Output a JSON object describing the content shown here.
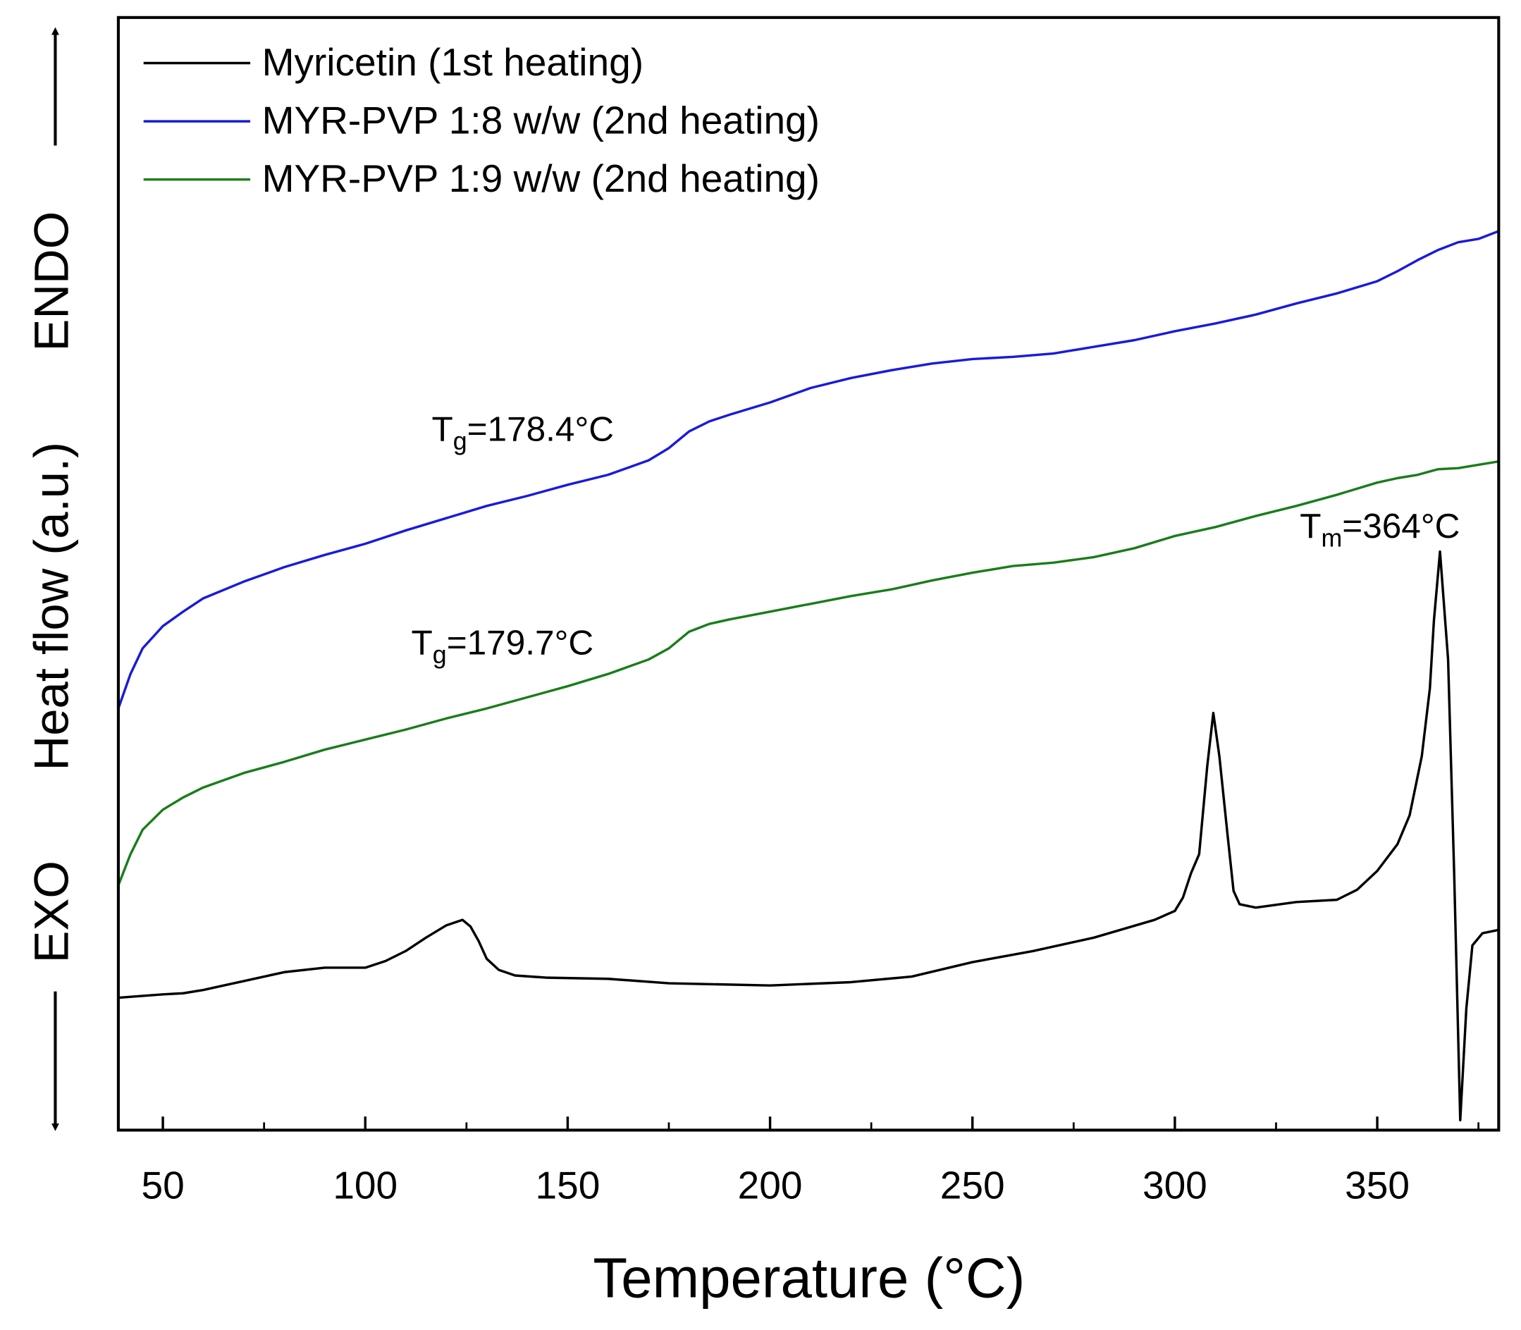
{
  "chart_data": {
    "type": "line",
    "x_label": "Temperature (°C)",
    "y_label": "Heat flow (a.u.)",
    "y_top_label": "ENDO",
    "y_bottom_label": "EXO",
    "xlim": [
      39,
      380
    ],
    "ylim": [
      0,
      100
    ],
    "xticks": [
      50,
      100,
      150,
      200,
      250,
      300,
      350
    ],
    "xminorticks": [
      75,
      125,
      175,
      225,
      275,
      325,
      375
    ],
    "legend": "upper left",
    "annotations": [
      {
        "parts": [
          "T",
          "g",
          "=178.4°C"
        ]
      },
      {
        "parts": [
          "T",
          "g",
          "=179.7°C"
        ]
      },
      {
        "parts": [
          "T",
          "m",
          "=364°C"
        ]
      }
    ],
    "series": [
      {
        "name": "Myricetin (1st heating)",
        "color": "#000000",
        "x": [
          39,
          50,
          55,
          60,
          70,
          80,
          90,
          100,
          105,
          110,
          115,
          120,
          124,
          126,
          128,
          130,
          133,
          137,
          145,
          160,
          175,
          200,
          220,
          235,
          250,
          265,
          280,
          295,
          300,
          302,
          304,
          306,
          308,
          309.5,
          311,
          313,
          314.5,
          316,
          320,
          330,
          340,
          345,
          350,
          355,
          358,
          361,
          363,
          364,
          365.5,
          367.5,
          369,
          370.5,
          372,
          373.5,
          376,
          380
        ],
        "values": [
          11.9,
          12.2,
          12.3,
          12.6,
          13.4,
          14.2,
          14.6,
          14.6,
          15.2,
          16.1,
          17.3,
          18.4,
          18.9,
          18.3,
          17.0,
          15.4,
          14.4,
          13.9,
          13.7,
          13.6,
          13.2,
          13.0,
          13.3,
          13.8,
          15.1,
          16.1,
          17.3,
          18.9,
          19.7,
          20.9,
          23.1,
          24.8,
          32.7,
          37.5,
          33.6,
          26.6,
          21.5,
          20.3,
          20.0,
          20.5,
          20.7,
          21.6,
          23.3,
          25.7,
          28.3,
          33.6,
          39.7,
          45.8,
          52.0,
          42.3,
          23.1,
          0.9,
          10.9,
          16.6,
          17.7,
          18.0
        ]
      },
      {
        "name": "MYR-PVP 1:8 w/w (2nd heating)",
        "color": "#1a1adc",
        "x": [
          39,
          42,
          45,
          50,
          55,
          60,
          70,
          80,
          90,
          100,
          110,
          120,
          130,
          140,
          150,
          160,
          170,
          175,
          180,
          185,
          190,
          200,
          210,
          220,
          230,
          240,
          250,
          260,
          270,
          280,
          290,
          300,
          310,
          320,
          330,
          340,
          350,
          355,
          360,
          365,
          370,
          375,
          380
        ],
        "values": [
          37.9,
          41.0,
          43.3,
          45.3,
          46.6,
          47.8,
          49.3,
          50.6,
          51.7,
          52.7,
          53.9,
          55.0,
          56.1,
          57.0,
          58.0,
          58.9,
          60.2,
          61.3,
          62.8,
          63.7,
          64.3,
          65.4,
          66.7,
          67.6,
          68.3,
          68.9,
          69.3,
          69.5,
          69.8,
          70.4,
          71.0,
          71.8,
          72.5,
          73.3,
          74.3,
          75.2,
          76.3,
          77.2,
          78.2,
          79.1,
          79.8,
          80.1,
          80.8
        ]
      },
      {
        "name": "MYR-PVP 1:9 w/w (2nd heating)",
        "color": "#1a7d1a",
        "x": [
          39,
          42,
          45,
          50,
          55,
          60,
          70,
          80,
          90,
          100,
          110,
          120,
          130,
          140,
          150,
          160,
          170,
          175,
          180,
          185,
          190,
          200,
          210,
          220,
          230,
          240,
          250,
          260,
          270,
          280,
          290,
          300,
          310,
          320,
          330,
          340,
          350,
          355,
          360,
          365,
          370,
          375,
          380
        ],
        "values": [
          22.0,
          24.8,
          27.0,
          28.8,
          29.9,
          30.8,
          32.1,
          33.1,
          34.2,
          35.1,
          36.0,
          37.0,
          37.9,
          38.9,
          39.9,
          41.0,
          42.3,
          43.3,
          44.8,
          45.5,
          45.9,
          46.6,
          47.3,
          48.0,
          48.6,
          49.4,
          50.1,
          50.7,
          51.0,
          51.5,
          52.3,
          53.4,
          54.2,
          55.2,
          56.1,
          57.1,
          58.2,
          58.6,
          58.9,
          59.4,
          59.5,
          59.8,
          60.1
        ]
      }
    ]
  }
}
